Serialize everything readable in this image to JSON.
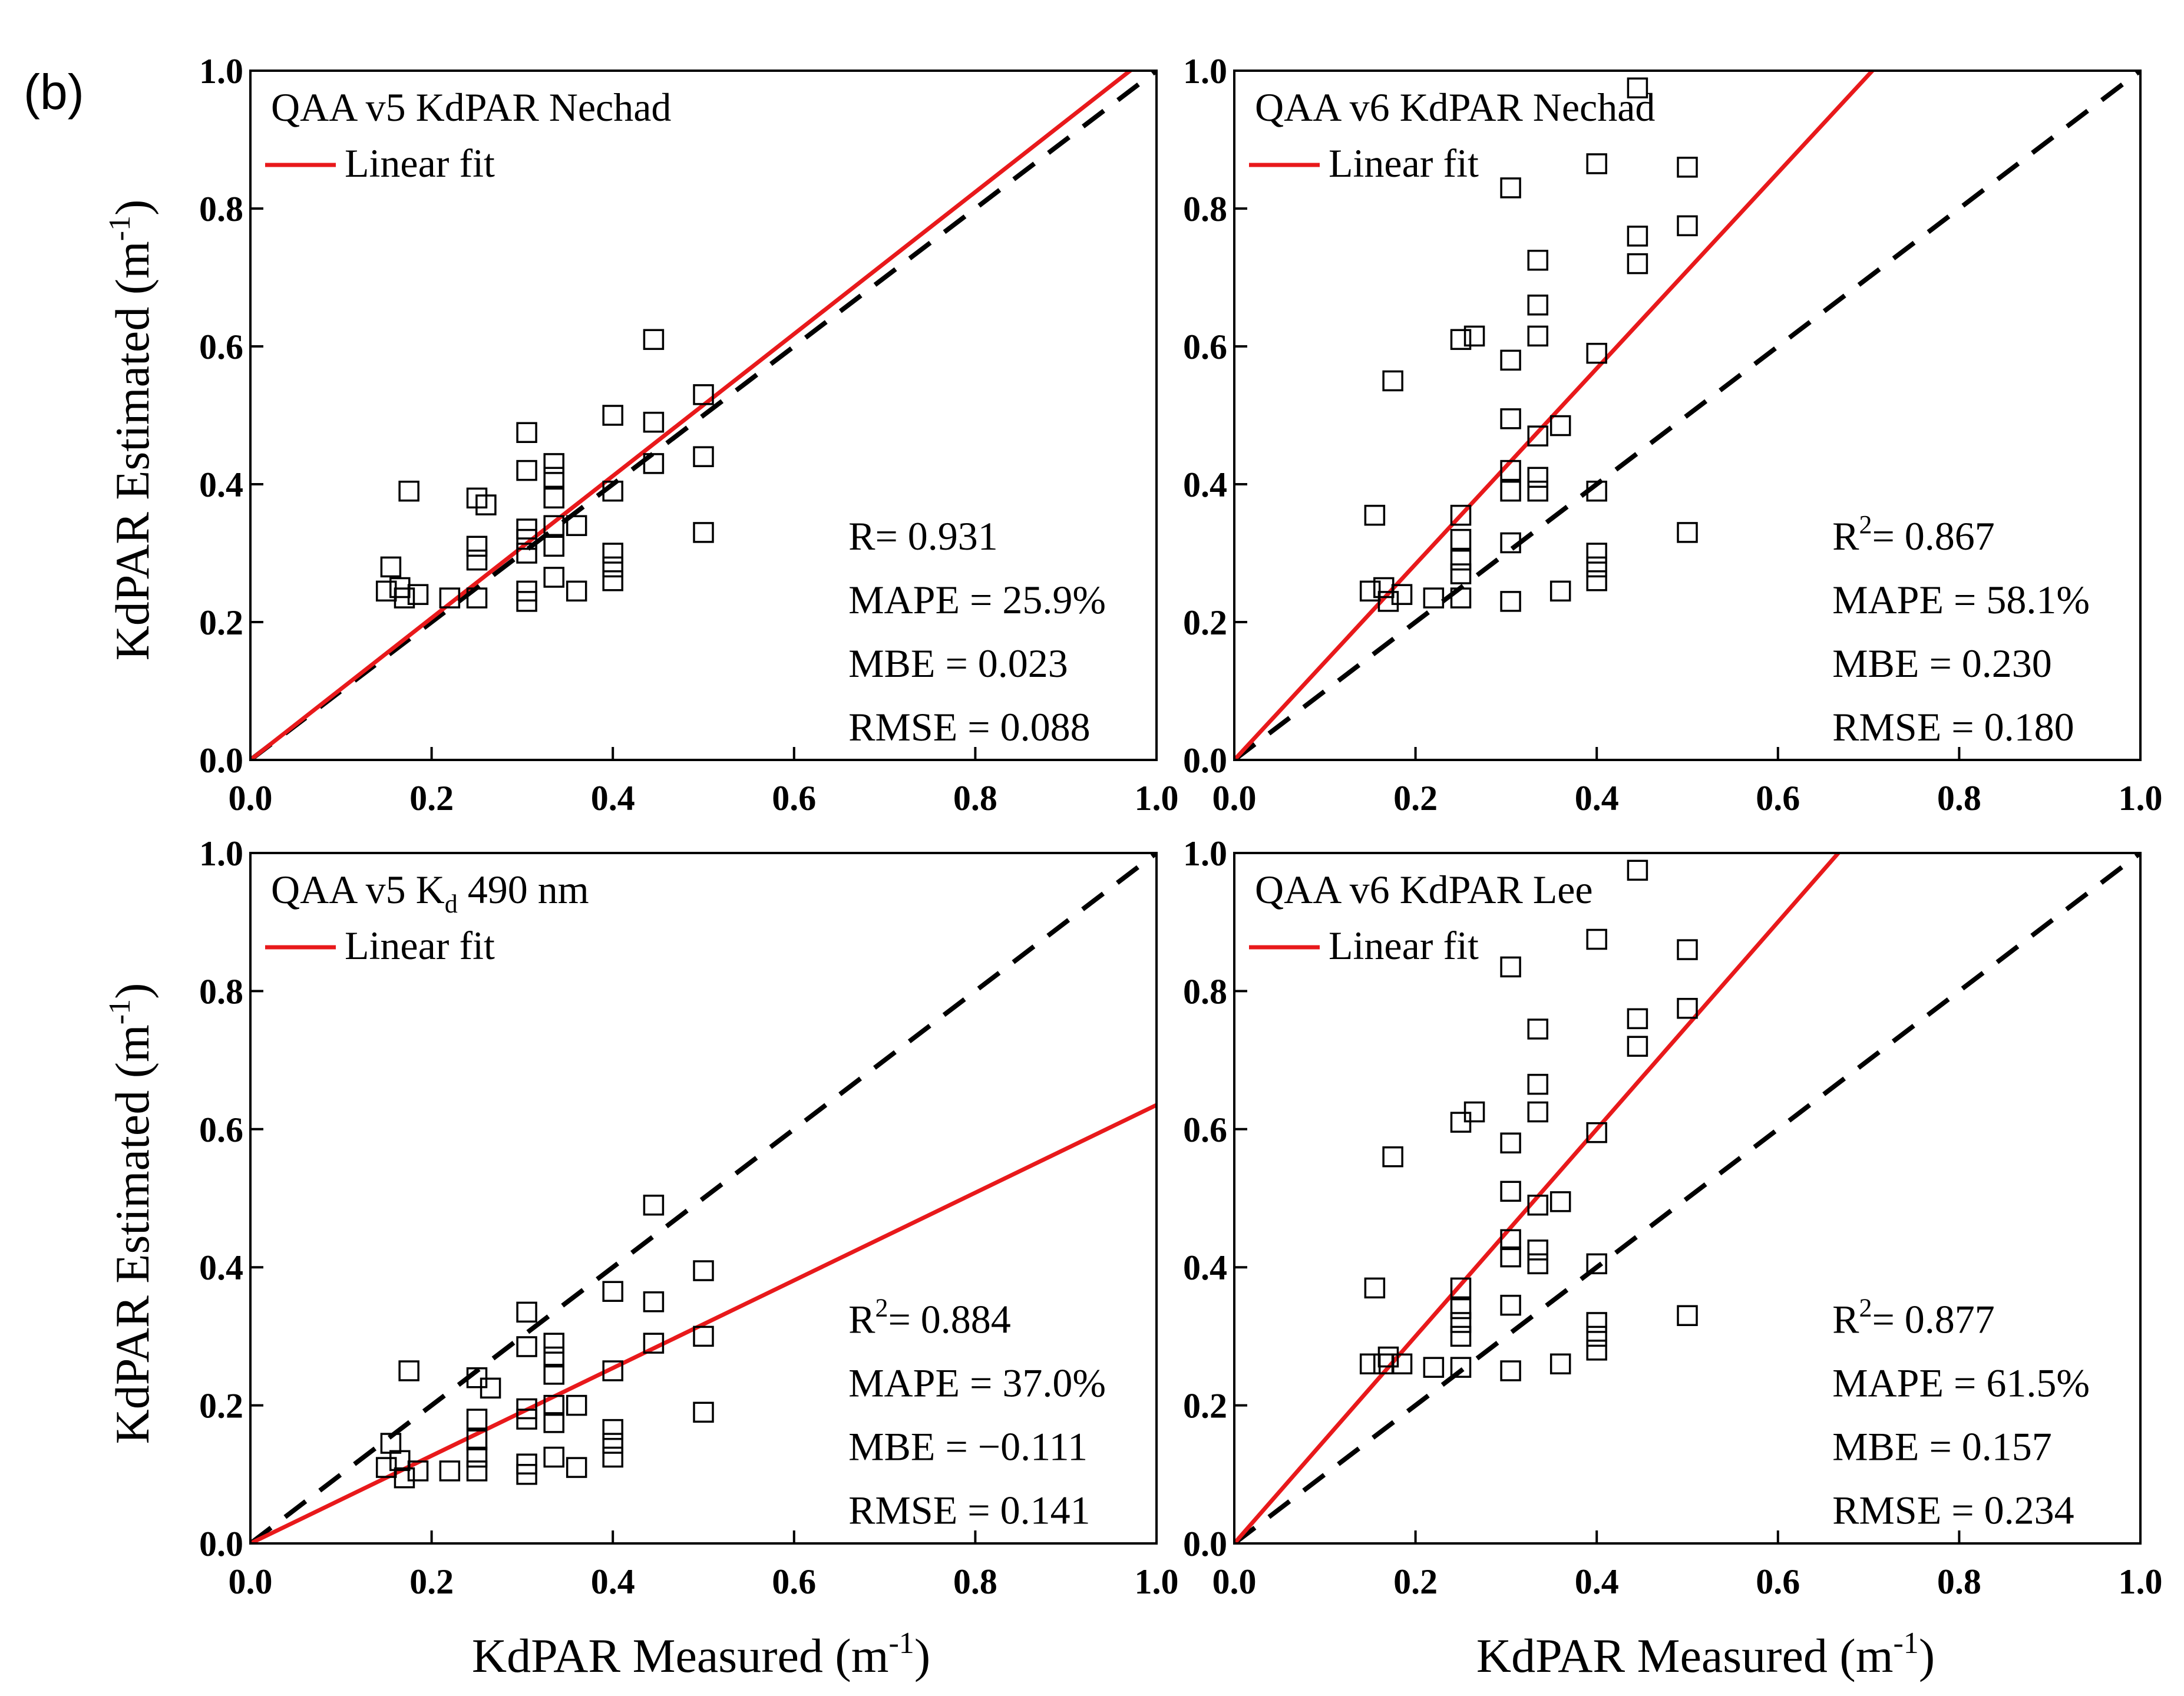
{
  "figure": {
    "panel_letter": "(b)",
    "ylabel_main": "KdPAR Estimated (m",
    "xlabel_main": "KdPAR Measured (m",
    "unit_sup": "-1",
    "unit_close": ")"
  },
  "colors": {
    "fit_line": "#e8191b",
    "identity_line": "#000000",
    "marker": "#000000",
    "axes": "#000000"
  },
  "chart_data": [
    {
      "type": "scatter",
      "title": "QAA v5 KdPAR Nechad",
      "legend": {
        "label": "Linear fit",
        "placement": "top-left"
      },
      "xlim": [
        0,
        1.0
      ],
      "ylim": [
        0,
        1.0
      ],
      "xticks": [
        "0.0",
        "0.2",
        "0.4",
        "0.6",
        "0.8",
        "1.0"
      ],
      "yticks": [
        "0.0",
        "0.2",
        "0.4",
        "0.6",
        "0.8",
        "1.0"
      ],
      "fit_line": {
        "slope": 1.03,
        "intercept": 0.0
      },
      "identity_line": true,
      "stats": [
        {
          "label": "R",
          "sup": "",
          "value": "= 0.931"
        },
        {
          "label": "MAPE",
          "sup": "",
          "value": " = 25.9%"
        },
        {
          "label": "MBE",
          "sup": "",
          "value": " = 0.023"
        },
        {
          "label": "RMSE",
          "sup": "",
          "value": " = 0.088"
        }
      ],
      "points": [
        [
          0.15,
          0.245
        ],
        [
          0.155,
          0.28
        ],
        [
          0.165,
          0.25
        ],
        [
          0.17,
          0.235
        ],
        [
          0.175,
          0.39
        ],
        [
          0.185,
          0.24
        ],
        [
          0.22,
          0.235
        ],
        [
          0.25,
          0.235
        ],
        [
          0.25,
          0.29
        ],
        [
          0.25,
          0.31
        ],
        [
          0.25,
          0.38
        ],
        [
          0.26,
          0.37
        ],
        [
          0.305,
          0.23
        ],
        [
          0.305,
          0.245
        ],
        [
          0.305,
          0.3
        ],
        [
          0.305,
          0.32
        ],
        [
          0.305,
          0.335
        ],
        [
          0.305,
          0.42
        ],
        [
          0.305,
          0.475
        ],
        [
          0.335,
          0.265
        ],
        [
          0.335,
          0.31
        ],
        [
          0.335,
          0.34
        ],
        [
          0.335,
          0.38
        ],
        [
          0.335,
          0.41
        ],
        [
          0.335,
          0.43
        ],
        [
          0.36,
          0.245
        ],
        [
          0.36,
          0.34
        ],
        [
          0.4,
          0.26
        ],
        [
          0.4,
          0.28
        ],
        [
          0.4,
          0.3
        ],
        [
          0.4,
          0.39
        ],
        [
          0.4,
          0.5
        ],
        [
          0.445,
          0.43
        ],
        [
          0.445,
          0.49
        ],
        [
          0.445,
          0.61
        ],
        [
          0.5,
          0.33
        ],
        [
          0.5,
          0.44
        ],
        [
          0.5,
          0.53
        ]
      ]
    },
    {
      "type": "scatter",
      "title": "QAA v6 KdPAR Nechad",
      "legend": {
        "label": "Linear fit",
        "placement": "top-left"
      },
      "xlim": [
        0,
        1.0
      ],
      "ylim": [
        0,
        1.0
      ],
      "xticks": [
        "0.0",
        "0.2",
        "0.4",
        "0.6",
        "0.8",
        "1.0"
      ],
      "yticks": [
        "0.0",
        "0.2",
        "0.4",
        "0.6",
        "0.8",
        "1.0"
      ],
      "fit_line": {
        "slope": 1.42,
        "intercept": 0.0
      },
      "identity_line": true,
      "stats": [
        {
          "label": "R",
          "sup": "2",
          "value": "= 0.867"
        },
        {
          "label": "MAPE",
          "sup": "",
          "value": " = 58.1%"
        },
        {
          "label": "MBE",
          "sup": "",
          "value": " = 0.230"
        },
        {
          "label": "RMSE",
          "sup": "",
          "value": " = 0.180"
        }
      ],
      "points": [
        [
          0.15,
          0.245
        ],
        [
          0.155,
          0.355
        ],
        [
          0.165,
          0.25
        ],
        [
          0.17,
          0.23
        ],
        [
          0.175,
          0.55
        ],
        [
          0.185,
          0.24
        ],
        [
          0.22,
          0.235
        ],
        [
          0.25,
          0.235
        ],
        [
          0.25,
          0.27
        ],
        [
          0.25,
          0.29
        ],
        [
          0.25,
          0.32
        ],
        [
          0.25,
          0.355
        ],
        [
          0.25,
          0.61
        ],
        [
          0.265,
          0.615
        ],
        [
          0.305,
          0.23
        ],
        [
          0.305,
          0.315
        ],
        [
          0.305,
          0.39
        ],
        [
          0.305,
          0.42
        ],
        [
          0.305,
          0.495
        ],
        [
          0.305,
          0.58
        ],
        [
          0.305,
          0.83
        ],
        [
          0.335,
          0.39
        ],
        [
          0.335,
          0.41
        ],
        [
          0.335,
          0.47
        ],
        [
          0.335,
          0.615
        ],
        [
          0.335,
          0.66
        ],
        [
          0.335,
          0.725
        ],
        [
          0.36,
          0.245
        ],
        [
          0.36,
          0.485
        ],
        [
          0.4,
          0.26
        ],
        [
          0.4,
          0.28
        ],
        [
          0.4,
          0.3
        ],
        [
          0.4,
          0.39
        ],
        [
          0.4,
          0.59
        ],
        [
          0.4,
          0.865
        ],
        [
          0.445,
          0.72
        ],
        [
          0.445,
          0.76
        ],
        [
          0.445,
          0.975
        ],
        [
          0.5,
          0.33
        ],
        [
          0.5,
          0.775
        ],
        [
          0.5,
          0.86
        ]
      ]
    },
    {
      "type": "scatter",
      "title": "QAA v5 K",
      "title_sub": "d",
      "title_rest": " 490 nm",
      "legend": {
        "label": "Linear fit",
        "placement": "top-left"
      },
      "xlim": [
        0,
        1.0
      ],
      "ylim": [
        0,
        1.0
      ],
      "xticks": [
        "0.0",
        "0.2",
        "0.4",
        "0.6",
        "0.8",
        "1.0"
      ],
      "yticks": [
        "0.0",
        "0.2",
        "0.4",
        "0.6",
        "0.8",
        "1.0"
      ],
      "fit_line": {
        "slope": 0.635,
        "intercept": 0.0
      },
      "identity_line": true,
      "stats": [
        {
          "label": "R",
          "sup": "2",
          "value": "= 0.884"
        },
        {
          "label": "MAPE",
          "sup": "",
          "value": " = 37.0%"
        },
        {
          "label": "MBE",
          "sup": "",
          "value": " = −0.111"
        },
        {
          "label": "RMSE",
          "sup": "",
          "value": " = 0.141"
        }
      ],
      "points": [
        [
          0.15,
          0.11
        ],
        [
          0.155,
          0.145
        ],
        [
          0.165,
          0.12
        ],
        [
          0.17,
          0.095
        ],
        [
          0.175,
          0.25
        ],
        [
          0.185,
          0.105
        ],
        [
          0.22,
          0.105
        ],
        [
          0.25,
          0.105
        ],
        [
          0.25,
          0.125
        ],
        [
          0.25,
          0.15
        ],
        [
          0.25,
          0.18
        ],
        [
          0.25,
          0.24
        ],
        [
          0.265,
          0.225
        ],
        [
          0.305,
          0.1
        ],
        [
          0.305,
          0.115
        ],
        [
          0.305,
          0.18
        ],
        [
          0.305,
          0.195
        ],
        [
          0.305,
          0.285
        ],
        [
          0.305,
          0.335
        ],
        [
          0.335,
          0.125
        ],
        [
          0.335,
          0.175
        ],
        [
          0.335,
          0.2
        ],
        [
          0.335,
          0.245
        ],
        [
          0.335,
          0.27
        ],
        [
          0.335,
          0.29
        ],
        [
          0.36,
          0.11
        ],
        [
          0.36,
          0.2
        ],
        [
          0.4,
          0.125
        ],
        [
          0.4,
          0.145
        ],
        [
          0.4,
          0.165
        ],
        [
          0.4,
          0.25
        ],
        [
          0.4,
          0.365
        ],
        [
          0.445,
          0.29
        ],
        [
          0.445,
          0.35
        ],
        [
          0.445,
          0.49
        ],
        [
          0.5,
          0.19
        ],
        [
          0.5,
          0.3
        ],
        [
          0.5,
          0.395
        ]
      ]
    },
    {
      "type": "scatter",
      "title": "QAA v6 KdPAR Lee",
      "legend": {
        "label": "Linear fit",
        "placement": "top-left"
      },
      "xlim": [
        0,
        1.0
      ],
      "ylim": [
        0,
        1.0
      ],
      "xticks": [
        "0.0",
        "0.2",
        "0.4",
        "0.6",
        "0.8",
        "1.0"
      ],
      "yticks": [
        "0.0",
        "0.2",
        "0.4",
        "0.6",
        "0.8",
        "1.0"
      ],
      "fit_line": {
        "slope": 1.5,
        "intercept": 0.0
      },
      "identity_line": true,
      "stats": [
        {
          "label": "R",
          "sup": "2",
          "value": "= 0.877"
        },
        {
          "label": "MAPE",
          "sup": "",
          "value": " = 61.5%"
        },
        {
          "label": "MBE",
          "sup": "",
          "value": " = 0.157"
        },
        {
          "label": "RMSE",
          "sup": "",
          "value": " = 0.234"
        }
      ],
      "points": [
        [
          0.15,
          0.26
        ],
        [
          0.155,
          0.37
        ],
        [
          0.165,
          0.26
        ],
        [
          0.17,
          0.27
        ],
        [
          0.175,
          0.56
        ],
        [
          0.185,
          0.26
        ],
        [
          0.22,
          0.255
        ],
        [
          0.25,
          0.255
        ],
        [
          0.25,
          0.3
        ],
        [
          0.25,
          0.32
        ],
        [
          0.25,
          0.34
        ],
        [
          0.25,
          0.37
        ],
        [
          0.25,
          0.61
        ],
        [
          0.265,
          0.625
        ],
        [
          0.305,
          0.25
        ],
        [
          0.305,
          0.345
        ],
        [
          0.305,
          0.415
        ],
        [
          0.305,
          0.44
        ],
        [
          0.305,
          0.51
        ],
        [
          0.305,
          0.58
        ],
        [
          0.305,
          0.835
        ],
        [
          0.335,
          0.405
        ],
        [
          0.335,
          0.425
        ],
        [
          0.335,
          0.49
        ],
        [
          0.335,
          0.625
        ],
        [
          0.335,
          0.665
        ],
        [
          0.335,
          0.745
        ],
        [
          0.36,
          0.26
        ],
        [
          0.36,
          0.495
        ],
        [
          0.4,
          0.28
        ],
        [
          0.4,
          0.3
        ],
        [
          0.4,
          0.32
        ],
        [
          0.4,
          0.405
        ],
        [
          0.4,
          0.595
        ],
        [
          0.4,
          0.875
        ],
        [
          0.445,
          0.72
        ],
        [
          0.445,
          0.76
        ],
        [
          0.445,
          0.975
        ],
        [
          0.5,
          0.33
        ],
        [
          0.5,
          0.775
        ],
        [
          0.5,
          0.86
        ]
      ]
    }
  ]
}
